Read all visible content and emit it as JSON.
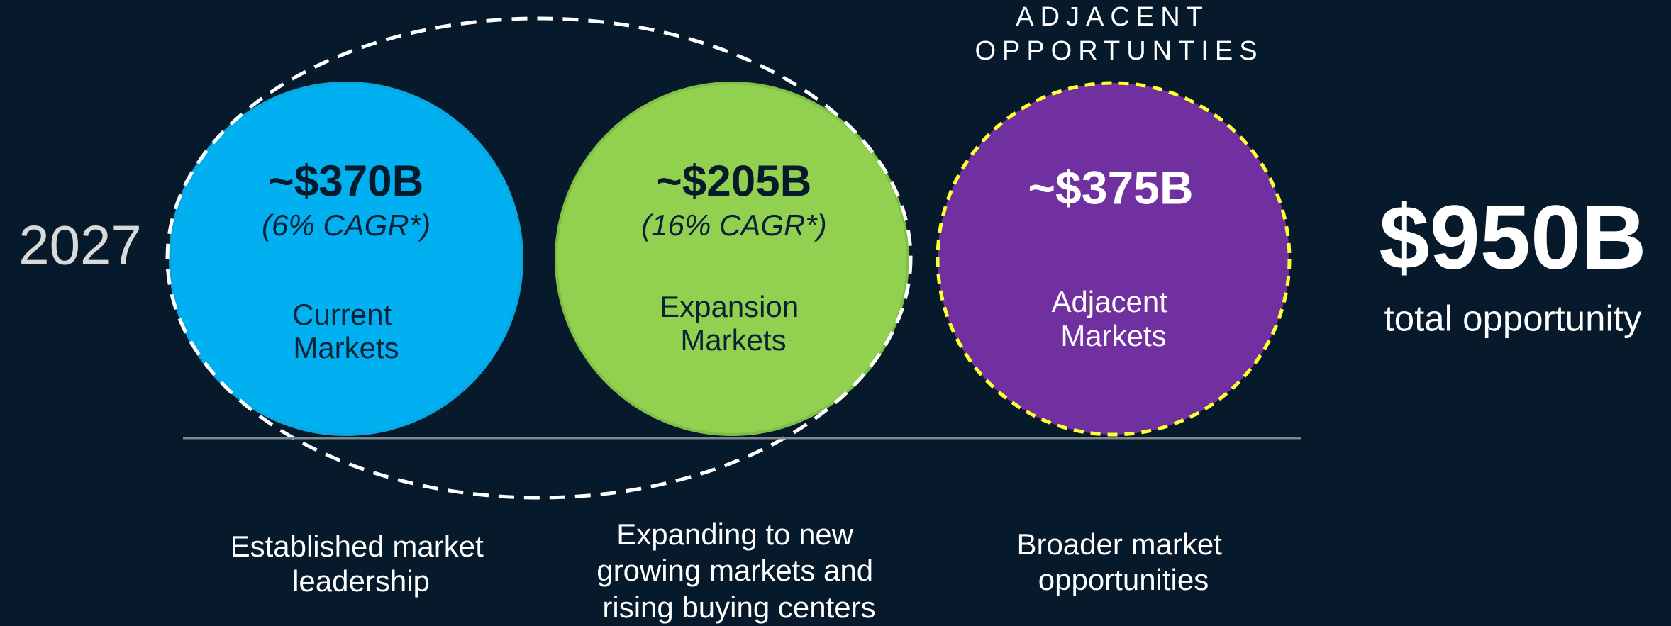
{
  "year": "2027",
  "adjacent_header": [
    "ADJACENT",
    "OPPORTUNTIES"
  ],
  "circles": [
    {
      "value": "~$370B",
      "cagr": "(6% CAGR*)",
      "label": [
        "Current",
        "Markets"
      ],
      "description": [
        "Established market",
        "leadership"
      ]
    },
    {
      "value": "~$205B",
      "cagr": "(16% CAGR*)",
      "label": [
        "Expansion",
        "Markets"
      ],
      "description": [
        "Expanding to new",
        "growing markets and",
        "rising buying centers"
      ]
    },
    {
      "value": "~$375B",
      "label": [
        "Adjacent",
        "Markets"
      ],
      "description": [
        "Broader market",
        "opportunities"
      ]
    }
  ],
  "total": {
    "value": "$950B",
    "label": "total opportunity"
  }
}
